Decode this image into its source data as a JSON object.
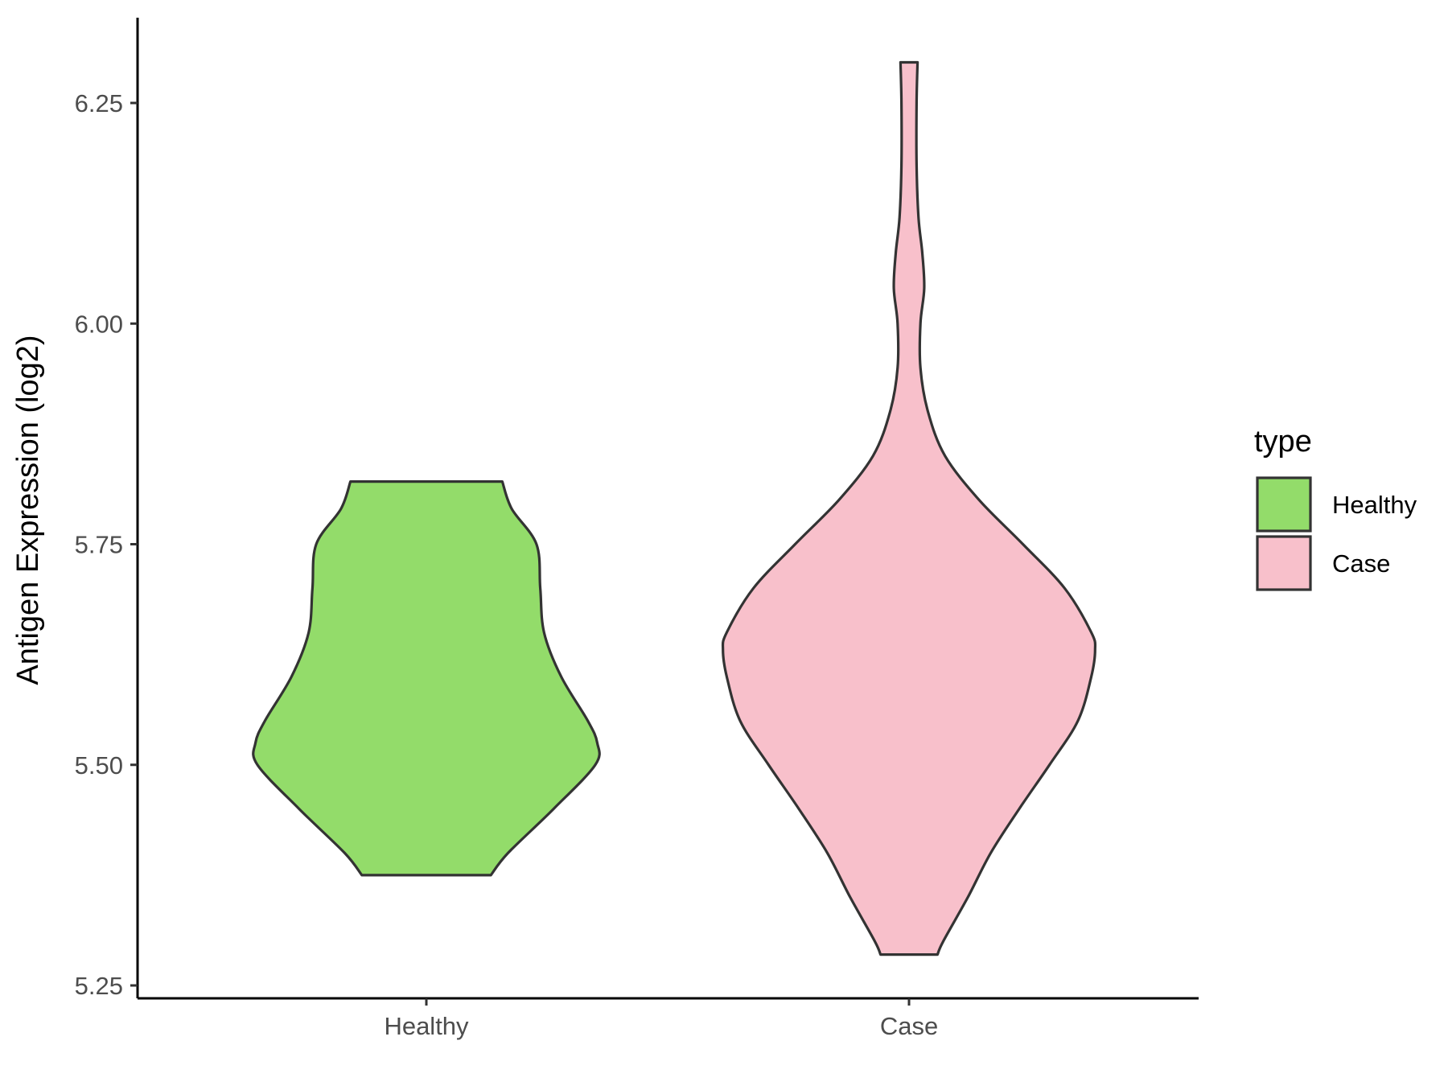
{
  "chart_data": {
    "type": "violin",
    "title": "",
    "xlabel": "",
    "ylabel": "Antigen Expression (log2)",
    "ylim": [
      5.23,
      6.34
    ],
    "y_ticks": [
      5.25,
      5.5,
      5.75,
      6.0,
      6.25
    ],
    "y_tick_labels": [
      "5.25",
      "5.50",
      "5.75",
      "6.00",
      "6.25"
    ],
    "categories": [
      "Healthy",
      "Case"
    ],
    "legend": {
      "title": "type",
      "position": "right",
      "entries": [
        "Healthy",
        "Case"
      ]
    },
    "series": [
      {
        "name": "Healthy",
        "color": "#93dc6a",
        "min": 5.375,
        "max": 5.821,
        "density": [
          [
            5.375,
            0.34
          ],
          [
            5.4,
            0.43
          ],
          [
            5.45,
            0.67
          ],
          [
            5.5,
            0.89
          ],
          [
            5.525,
            0.9
          ],
          [
            5.55,
            0.85
          ],
          [
            5.6,
            0.71
          ],
          [
            5.65,
            0.62
          ],
          [
            5.7,
            0.6
          ],
          [
            5.75,
            0.58
          ],
          [
            5.79,
            0.45
          ],
          [
            5.821,
            0.4
          ]
        ]
      },
      {
        "name": "Case",
        "color": "#f8c0cb",
        "min": 5.285,
        "max": 6.296,
        "density": [
          [
            5.285,
            0.15
          ],
          [
            5.3,
            0.18
          ],
          [
            5.35,
            0.31
          ],
          [
            5.4,
            0.43
          ],
          [
            5.45,
            0.58
          ],
          [
            5.5,
            0.74
          ],
          [
            5.55,
            0.89
          ],
          [
            5.6,
            0.96
          ],
          [
            5.63,
            0.98
          ],
          [
            5.65,
            0.96
          ],
          [
            5.7,
            0.82
          ],
          [
            5.75,
            0.6
          ],
          [
            5.8,
            0.37
          ],
          [
            5.85,
            0.19
          ],
          [
            5.9,
            0.1
          ],
          [
            5.95,
            0.06
          ],
          [
            6.0,
            0.06
          ],
          [
            6.04,
            0.08
          ],
          [
            6.08,
            0.07
          ],
          [
            6.12,
            0.05
          ],
          [
            6.18,
            0.04
          ],
          [
            6.25,
            0.04
          ],
          [
            6.296,
            0.045
          ]
        ]
      }
    ]
  }
}
